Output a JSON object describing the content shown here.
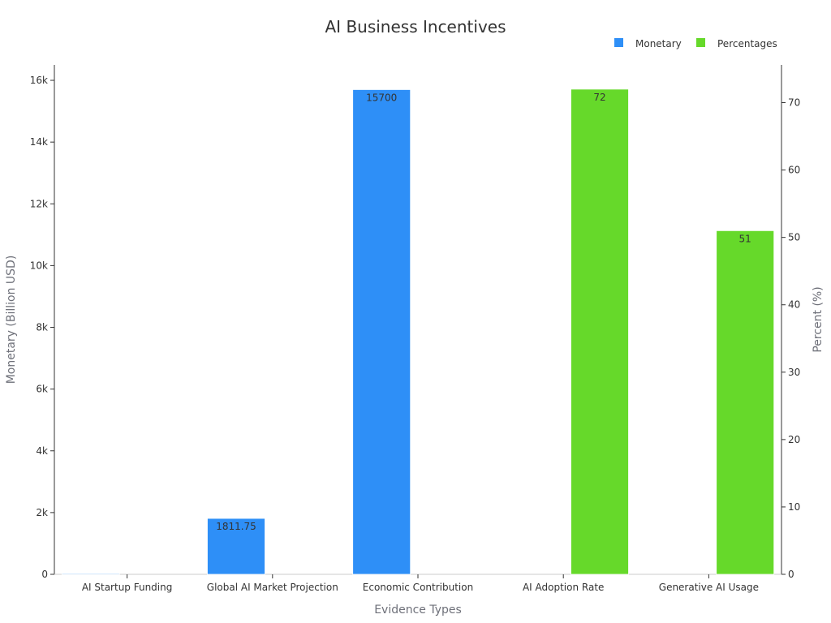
{
  "chart_data": {
    "type": "bar",
    "title": "AI Business Incentives",
    "xlabel": "Evidence Types",
    "ylabel_left": "Monetary (Billion USD)",
    "ylabel_right": "Percent (%)",
    "categories": [
      "AI Startup Funding",
      "Global AI Market Projection",
      "Economic Contribution",
      "AI Adoption Rate",
      "Generative AI Usage"
    ],
    "left_axis": {
      "min": 0,
      "max": 16500,
      "ticks": [
        0,
        2000,
        4000,
        6000,
        8000,
        10000,
        12000,
        14000,
        16000
      ],
      "tick_labels": [
        "0",
        "2k",
        "4k",
        "6k",
        "8k",
        "10k",
        "12k",
        "14k",
        "16k"
      ]
    },
    "right_axis": {
      "min": 0,
      "max": 75.6,
      "ticks": [
        0,
        10,
        20,
        30,
        40,
        50,
        60,
        70
      ],
      "tick_labels": [
        "0",
        "10",
        "20",
        "30",
        "40",
        "50",
        "60",
        "70"
      ]
    },
    "legend": {
      "position": "top-right",
      "items": [
        {
          "name": "Monetary",
          "color": "#2e8ff7"
        },
        {
          "name": "Percentages",
          "color": "#66d92a"
        }
      ]
    },
    "series": [
      {
        "name": "Monetary",
        "axis": "left",
        "color": "#2e8ff7",
        "values": [
          25,
          1811.75,
          15700,
          null,
          null
        ],
        "labels": [
          "",
          "1811.75",
          "15700",
          "",
          ""
        ]
      },
      {
        "name": "Percentages",
        "axis": "right",
        "color": "#66d92a",
        "values": [
          null,
          null,
          null,
          72,
          51
        ],
        "labels": [
          "",
          "",
          "",
          "72",
          "51"
        ]
      }
    ],
    "grid": false
  }
}
